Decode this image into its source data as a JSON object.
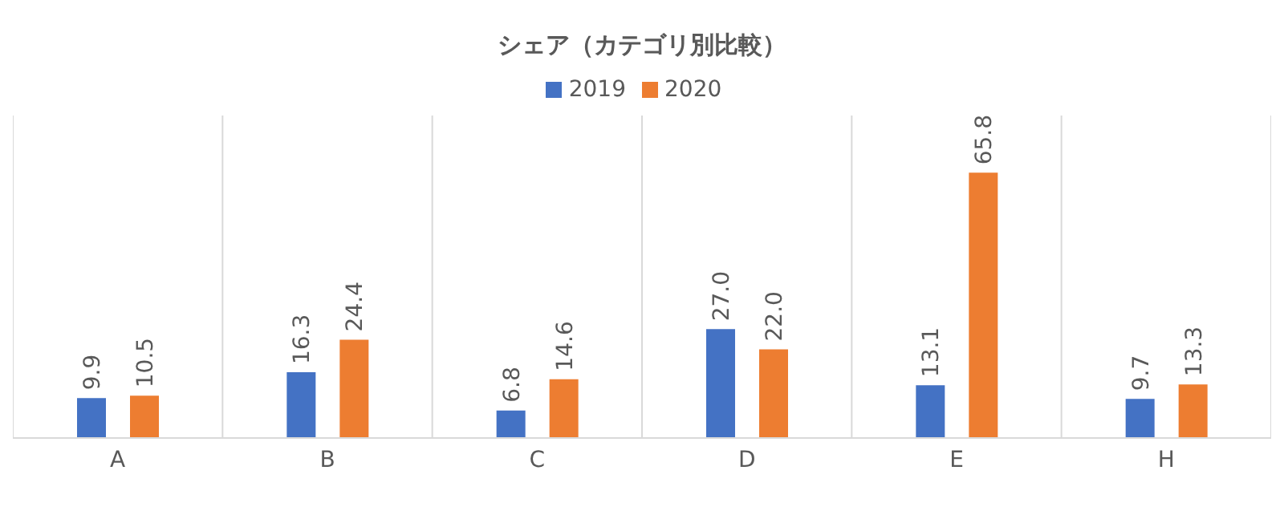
{
  "chart_data": {
    "type": "bar",
    "title": "シェア（カテゴリ別比較）",
    "categories": [
      "A",
      "B",
      "C",
      "D",
      "E",
      "H"
    ],
    "series": [
      {
        "name": "2019",
        "color": "#4472c4",
        "values": [
          9.9,
          16.3,
          6.8,
          27.0,
          13.1,
          9.7
        ],
        "value_labels": [
          "9.9",
          "16.3",
          "6.8",
          "27.0",
          "13.1",
          "9.7"
        ]
      },
      {
        "name": "2020",
        "color": "#ed7d31",
        "values": [
          10.5,
          24.4,
          14.6,
          22.0,
          65.8,
          13.3
        ],
        "value_labels": [
          "10.5",
          "24.4",
          "14.6",
          "22.0",
          "65.8",
          "13.3"
        ]
      }
    ],
    "grid": "x",
    "legend": "top"
  }
}
